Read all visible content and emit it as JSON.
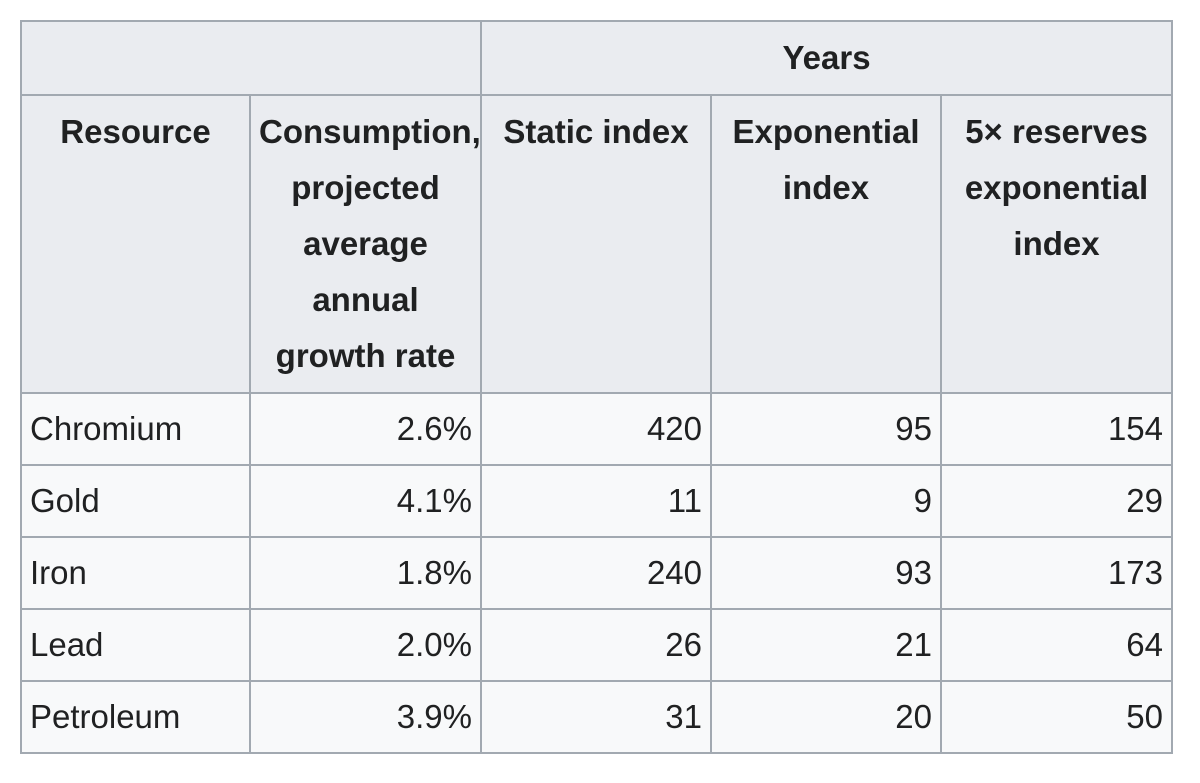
{
  "table": {
    "group_header": "Years",
    "headers": {
      "resource": "Resource",
      "consumption": "Consumption, projected average annual growth rate",
      "static_index": "Static index",
      "exponential_index": "Exponential index",
      "reserves_index": "5× reserves exponential index"
    },
    "rows": [
      {
        "resource": "Chromium",
        "growth": "2.6%",
        "static": "420",
        "exponential": "95",
        "reserves": "154"
      },
      {
        "resource": "Gold",
        "growth": "4.1%",
        "static": "11",
        "exponential": "9",
        "reserves": "29"
      },
      {
        "resource": "Iron",
        "growth": "1.8%",
        "static": "240",
        "exponential": "93",
        "reserves": "173"
      },
      {
        "resource": "Lead",
        "growth": "2.0%",
        "static": "26",
        "exponential": "21",
        "reserves": "64"
      },
      {
        "resource": "Petroleum",
        "growth": "3.9%",
        "static": "31",
        "exponential": "20",
        "reserves": "50"
      }
    ]
  }
}
